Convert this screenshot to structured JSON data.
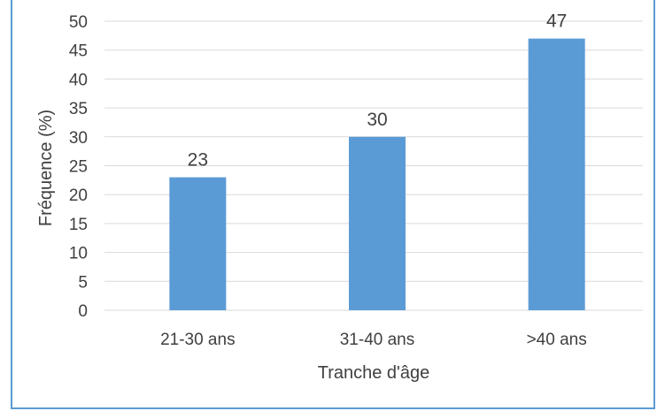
{
  "chart_data": {
    "type": "bar",
    "categories": [
      "21-30 ans",
      "31-40 ans",
      ">40 ans"
    ],
    "values": [
      23,
      30,
      47
    ],
    "data_labels": [
      "23",
      "30",
      "47"
    ],
    "title": "",
    "xlabel": "Tranche d'âge",
    "ylabel": "Fréquence (%)",
    "ylim": [
      0,
      50
    ],
    "ytick_step": 5,
    "yticks": [
      "0",
      "5",
      "10",
      "15",
      "20",
      "25",
      "30",
      "35",
      "40",
      "45",
      "50"
    ],
    "grid": true,
    "legend": "none",
    "bar_color": "#5b9bd5",
    "gridline_color": "#d9d9d9",
    "frame_color": "#5b9bd5"
  }
}
